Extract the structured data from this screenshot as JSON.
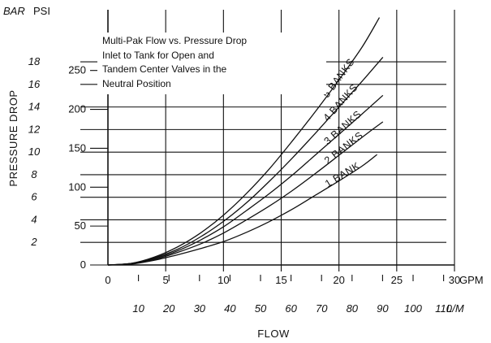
{
  "chart_data": {
    "type": "line",
    "title_lines": [
      "Multi-Pak Flow vs. Pressure Drop",
      "Inlet to Tank for Open and",
      "Tandem Center Valves in the",
      "Neutral Position"
    ],
    "xlabel": "FLOW",
    "ylabel": "PRESSURE DROP",
    "x_unit_primary": "GPM",
    "x_unit_secondary": "L/M",
    "y_unit_primary": "PSI",
    "y_unit_secondary": "BAR",
    "xlim": [
      0,
      30
    ],
    "ylim_psi": [
      0,
      300
    ],
    "x_ticks_gpm": [
      "0",
      "5",
      "10",
      "15",
      "20",
      "25",
      "30"
    ],
    "x_ticks_lpm": [
      "10",
      "20",
      "30",
      "40",
      "50",
      "60",
      "70",
      "80",
      "90",
      "100",
      "110"
    ],
    "y_ticks_psi": [
      "0",
      "50",
      "100",
      "150",
      "200",
      "250"
    ],
    "y_ticks_bar": [
      "2",
      "4",
      "6",
      "8",
      "10",
      "12",
      "14",
      "16",
      "18"
    ],
    "grid": true,
    "series": [
      {
        "name": "1 BANK",
        "x": [
          0,
          2,
          4,
          6,
          8,
          10,
          12,
          14,
          16,
          18,
          20,
          22,
          23.3
        ],
        "y": [
          0,
          1,
          6,
          13,
          21,
          30,
          42,
          56,
          72,
          90,
          108,
          127,
          142
        ]
      },
      {
        "name": "2 BANKS",
        "x": [
          0,
          2,
          4,
          6,
          8,
          10,
          12,
          14,
          16,
          18,
          20,
          22,
          23.8
        ],
        "y": [
          0,
          2,
          7,
          16,
          27,
          41,
          58,
          76,
          96,
          118,
          141,
          164,
          184
        ]
      },
      {
        "name": "3 BANKS",
        "x": [
          0,
          2,
          4,
          6,
          8,
          10,
          12,
          14,
          16,
          18,
          20,
          22,
          23.8
        ],
        "y": [
          0,
          2,
          8,
          18,
          32,
          49,
          70,
          92,
          116,
          142,
          168,
          194,
          218
        ]
      },
      {
        "name": "4 BANKS",
        "x": [
          0,
          2,
          4,
          6,
          8,
          10,
          12,
          14,
          16,
          18,
          20,
          22,
          23.8
        ],
        "y": [
          0,
          2,
          9,
          20,
          36,
          56,
          80,
          108,
          138,
          170,
          203,
          236,
          267
        ]
      },
      {
        "name": "5 BANKS",
        "x": [
          0,
          2,
          4,
          6,
          8,
          10,
          12,
          14,
          16,
          18,
          20,
          22,
          23.5
        ],
        "y": [
          0,
          2,
          10,
          23,
          41,
          64,
          92,
          124,
          160,
          198,
          238,
          280,
          318
        ]
      }
    ]
  }
}
